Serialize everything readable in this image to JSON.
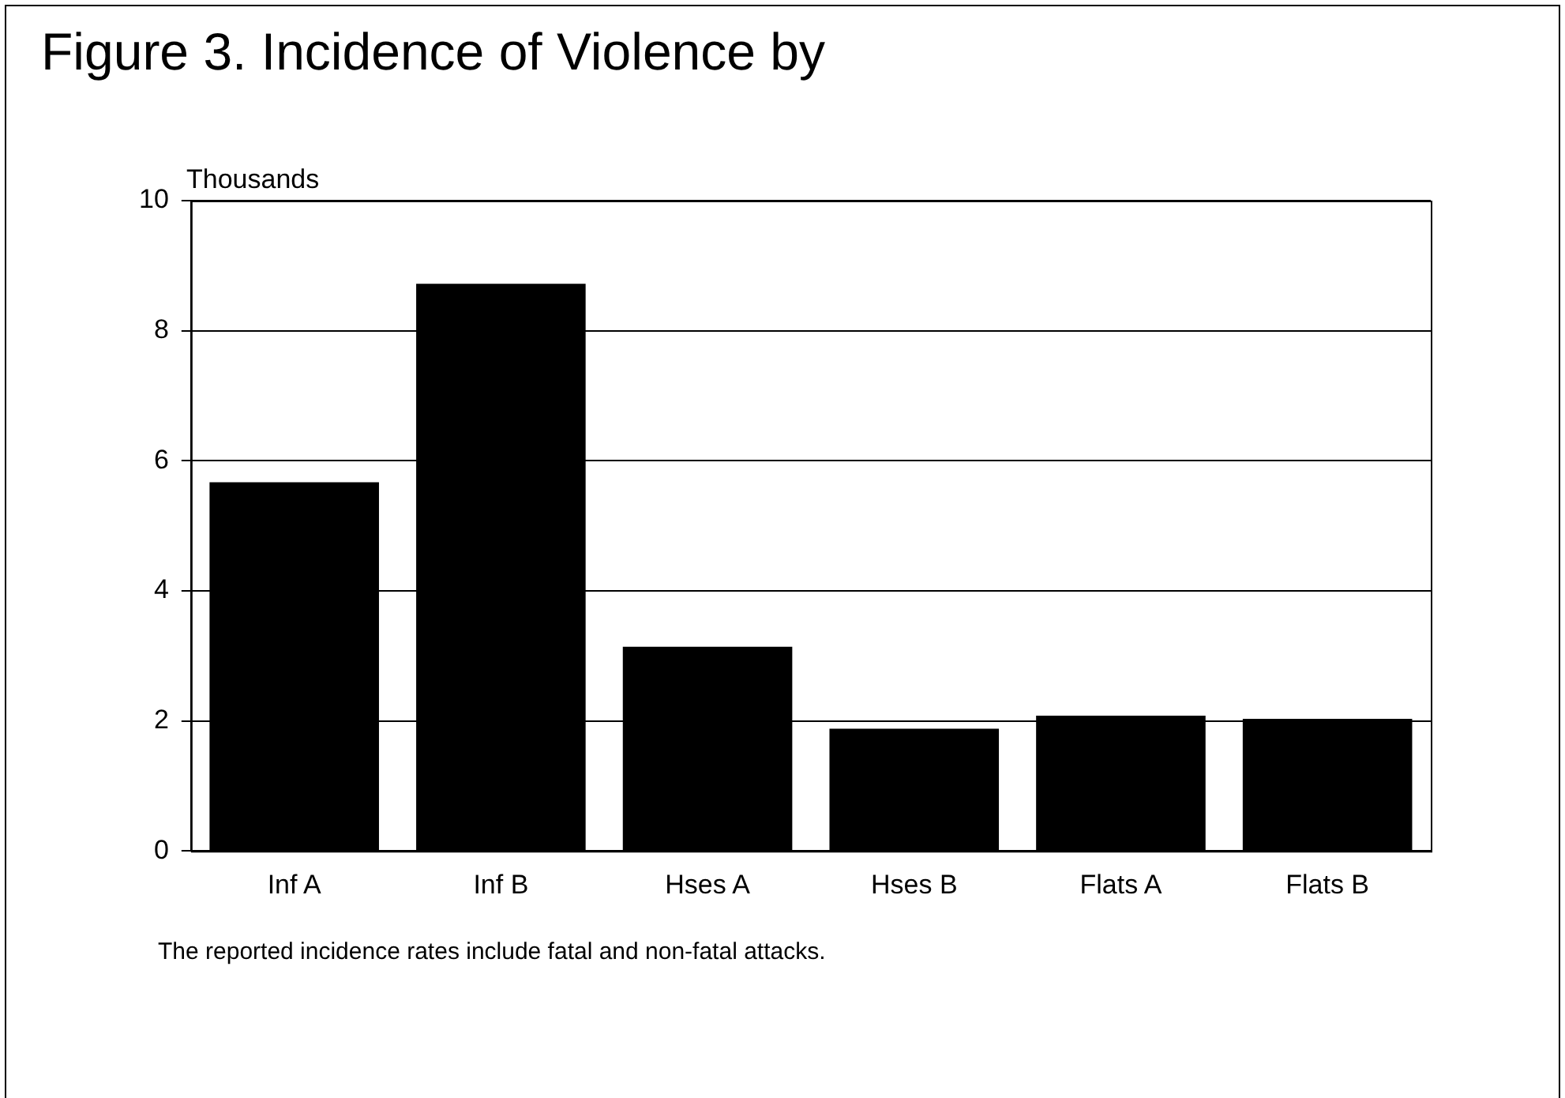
{
  "chart_data": {
    "type": "bar",
    "title": "Figure 3. Incidence of Violence by",
    "ylabel": "Thousands",
    "categories": [
      "Inf A",
      "Inf B",
      "Hses A",
      "Hses B",
      "Flats A",
      "Flats B"
    ],
    "values": [
      5.67,
      8.72,
      3.14,
      1.88,
      2.08,
      2.03
    ],
    "color": "#000000",
    "ylim": [
      0,
      10
    ],
    "yticks": [
      0,
      2,
      4,
      6,
      8,
      10
    ],
    "grid": "y",
    "annotations": [
      "The reported incidence rates include fatal and non-fatal attacks."
    ]
  }
}
